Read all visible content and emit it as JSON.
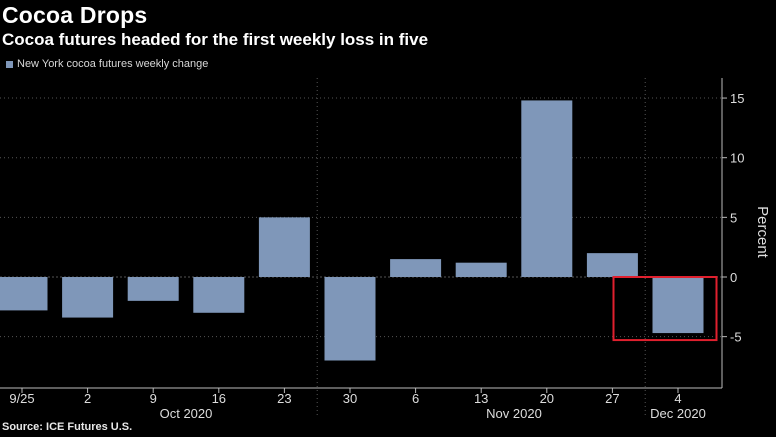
{
  "title": "Cocoa Drops",
  "subtitle": "Cocoa futures headed for the first weekly loss in five",
  "legend_label": "New York cocoa futures weekly change",
  "source": "Source: ICE Futures U.S.",
  "colors": {
    "bar": "#7f97b9",
    "highlight": "#e0202e",
    "axis": "#bbbbbb",
    "grid": "#555555"
  },
  "chart_data": {
    "type": "bar",
    "title": "Cocoa Drops",
    "subtitle": "Cocoa futures headed for the first weekly loss in five",
    "ylabel": "Percent",
    "xlabel": "",
    "ylim": [
      -9,
      17
    ],
    "yticks": [
      15,
      10,
      5,
      0,
      -5
    ],
    "categories": [
      "9/25",
      "2",
      "9",
      "16",
      "23",
      "30",
      "6",
      "13",
      "20",
      "27",
      "4"
    ],
    "month_labels": [
      {
        "label": "Oct 2020",
        "from": 1,
        "to": 4
      },
      {
        "label": "Nov 2020",
        "from": 6,
        "to": 9
      },
      {
        "label": "Dec 2020",
        "from": 10,
        "to": 10
      }
    ],
    "series": [
      {
        "name": "New York cocoa futures weekly change",
        "values": [
          -2.8,
          -3.4,
          -2.0,
          -3.0,
          5.0,
          -7.0,
          1.5,
          1.2,
          14.8,
          2.0,
          -4.7
        ]
      }
    ],
    "highlight_index": 10
  }
}
